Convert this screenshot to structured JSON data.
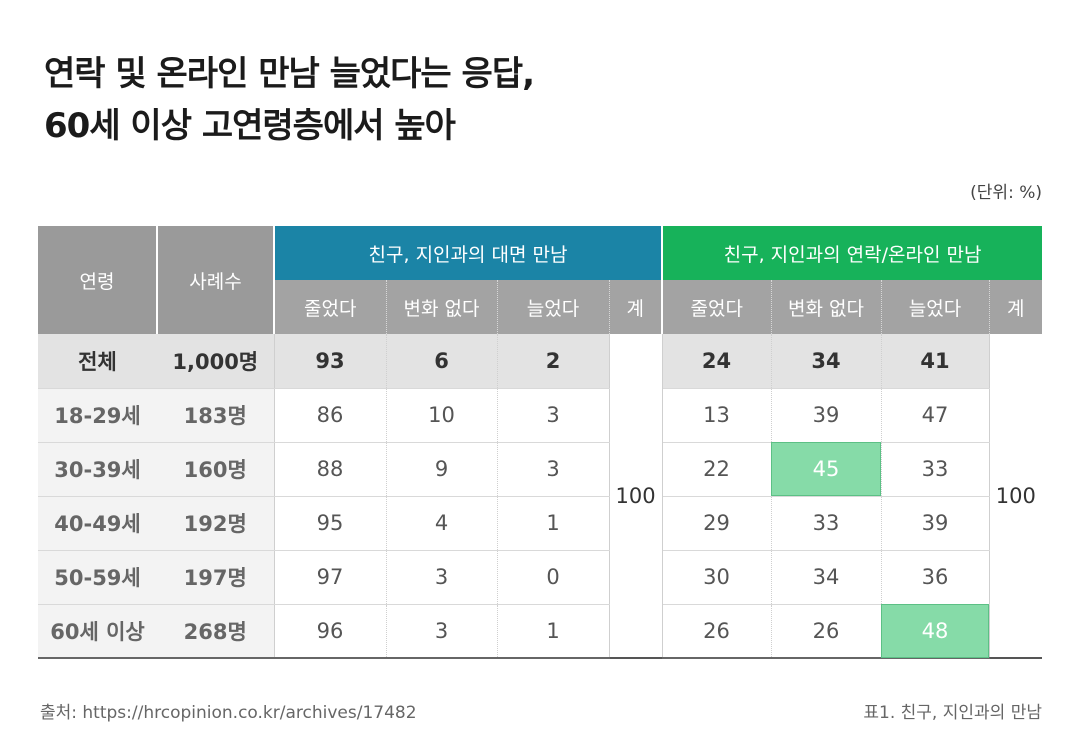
{
  "title_line1": "연락 및 온라인 만남 늘었다는 응답,",
  "title_line2": "60세 이상 고연령층에서 높아",
  "unit": "(단위: %)",
  "source": "출처: https://hrcopinion.co.kr/archives/17482",
  "caption": "표1. 친구, 지인과의 만남",
  "colors": {
    "blue_header": "#1b84a6",
    "green_header": "#17b25a",
    "highlight": "#86dba8"
  },
  "chart_data": {
    "type": "table",
    "headers": {
      "age": "연령",
      "count": "사례수",
      "group_face": "친구, 지인과의 대면 만남",
      "group_online": "친구, 지인과의 연락/온라인 만남",
      "sub": [
        "줄었다",
        "변화 없다",
        "늘었다",
        "계"
      ]
    },
    "rows": [
      {
        "age": "전체",
        "count": "1,000명",
        "face": [
          "93",
          "6",
          "2"
        ],
        "online": [
          "24",
          "34",
          "41"
        ]
      },
      {
        "age": "18-29세",
        "count": "183명",
        "face": [
          "86",
          "10",
          "3"
        ],
        "online": [
          "13",
          "39",
          "47"
        ]
      },
      {
        "age": "30-39세",
        "count": "160명",
        "face": [
          "88",
          "9",
          "3"
        ],
        "online": [
          "22",
          "45",
          "33"
        ]
      },
      {
        "age": "40-49세",
        "count": "192명",
        "face": [
          "95",
          "4",
          "1"
        ],
        "online": [
          "29",
          "33",
          "39"
        ]
      },
      {
        "age": "50-59세",
        "count": "197명",
        "face": [
          "97",
          "3",
          "0"
        ],
        "online": [
          "30",
          "34",
          "36"
        ]
      },
      {
        "age": "60세 이상",
        "count": "268명",
        "face": [
          "96",
          "3",
          "1"
        ],
        "online": [
          "26",
          "26",
          "48"
        ]
      }
    ],
    "face_total": "100",
    "online_total": "100",
    "highlighted": [
      "30-39세 / 연락·온라인 변화 없다 45",
      "60세 이상 / 연락·온라인 늘었다 48"
    ]
  }
}
